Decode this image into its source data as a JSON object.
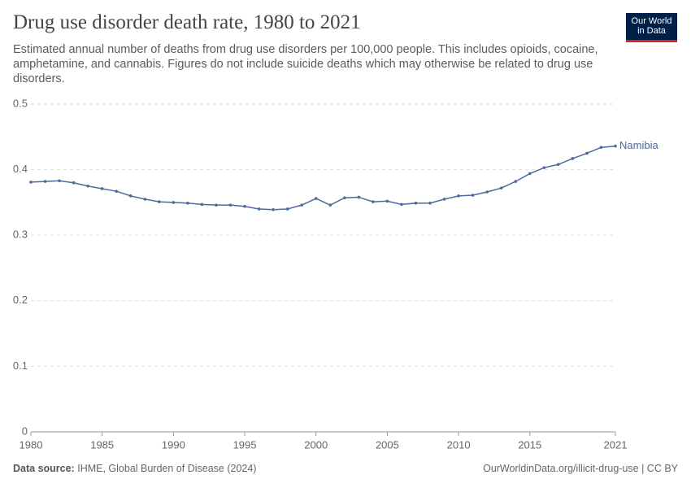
{
  "chart_data": {
    "type": "line",
    "title": "Drug use disorder death rate, 1980 to 2021",
    "subtitle": "Estimated annual number of deaths from drug use disorders per 100,000 people. This includes opioids, cocaine, amphetamine, and cannabis. Figures do not include suicide deaths which may otherwise be related to drug use disorders.",
    "logo": [
      "Our World",
      "in Data"
    ],
    "source_label": "Data source:",
    "source": "IHME, Global Burden of Disease (2024)",
    "footer_right": "OurWorldinData.org/illicit-drug-use | CC BY",
    "x": [
      1980,
      1981,
      1982,
      1983,
      1984,
      1985,
      1986,
      1987,
      1988,
      1989,
      1990,
      1991,
      1992,
      1993,
      1994,
      1995,
      1996,
      1997,
      1998,
      1999,
      2000,
      2001,
      2002,
      2003,
      2004,
      2005,
      2006,
      2007,
      2008,
      2009,
      2010,
      2011,
      2012,
      2013,
      2014,
      2015,
      2016,
      2017,
      2018,
      2019,
      2020,
      2021
    ],
    "series": [
      {
        "name": "Namibia",
        "color": "#4c6a9c",
        "values": [
          0.381,
          0.382,
          0.383,
          0.38,
          0.375,
          0.371,
          0.367,
          0.36,
          0.355,
          0.351,
          0.35,
          0.349,
          0.347,
          0.346,
          0.346,
          0.344,
          0.34,
          0.339,
          0.34,
          0.346,
          0.356,
          0.346,
          0.357,
          0.358,
          0.351,
          0.352,
          0.347,
          0.349,
          0.349,
          0.355,
          0.36,
          0.361,
          0.366,
          0.372,
          0.382,
          0.394,
          0.403,
          0.408,
          0.417,
          0.425,
          0.434,
          0.436
        ]
      }
    ],
    "xlim": [
      1980,
      2021
    ],
    "xticks": [
      1980,
      1985,
      1990,
      1995,
      2000,
      2005,
      2010,
      2015,
      2021
    ],
    "ylim": [
      0,
      0.5
    ],
    "yticks": [
      0,
      0.1,
      0.2,
      0.3,
      0.4,
      0.5
    ],
    "grid": true
  }
}
